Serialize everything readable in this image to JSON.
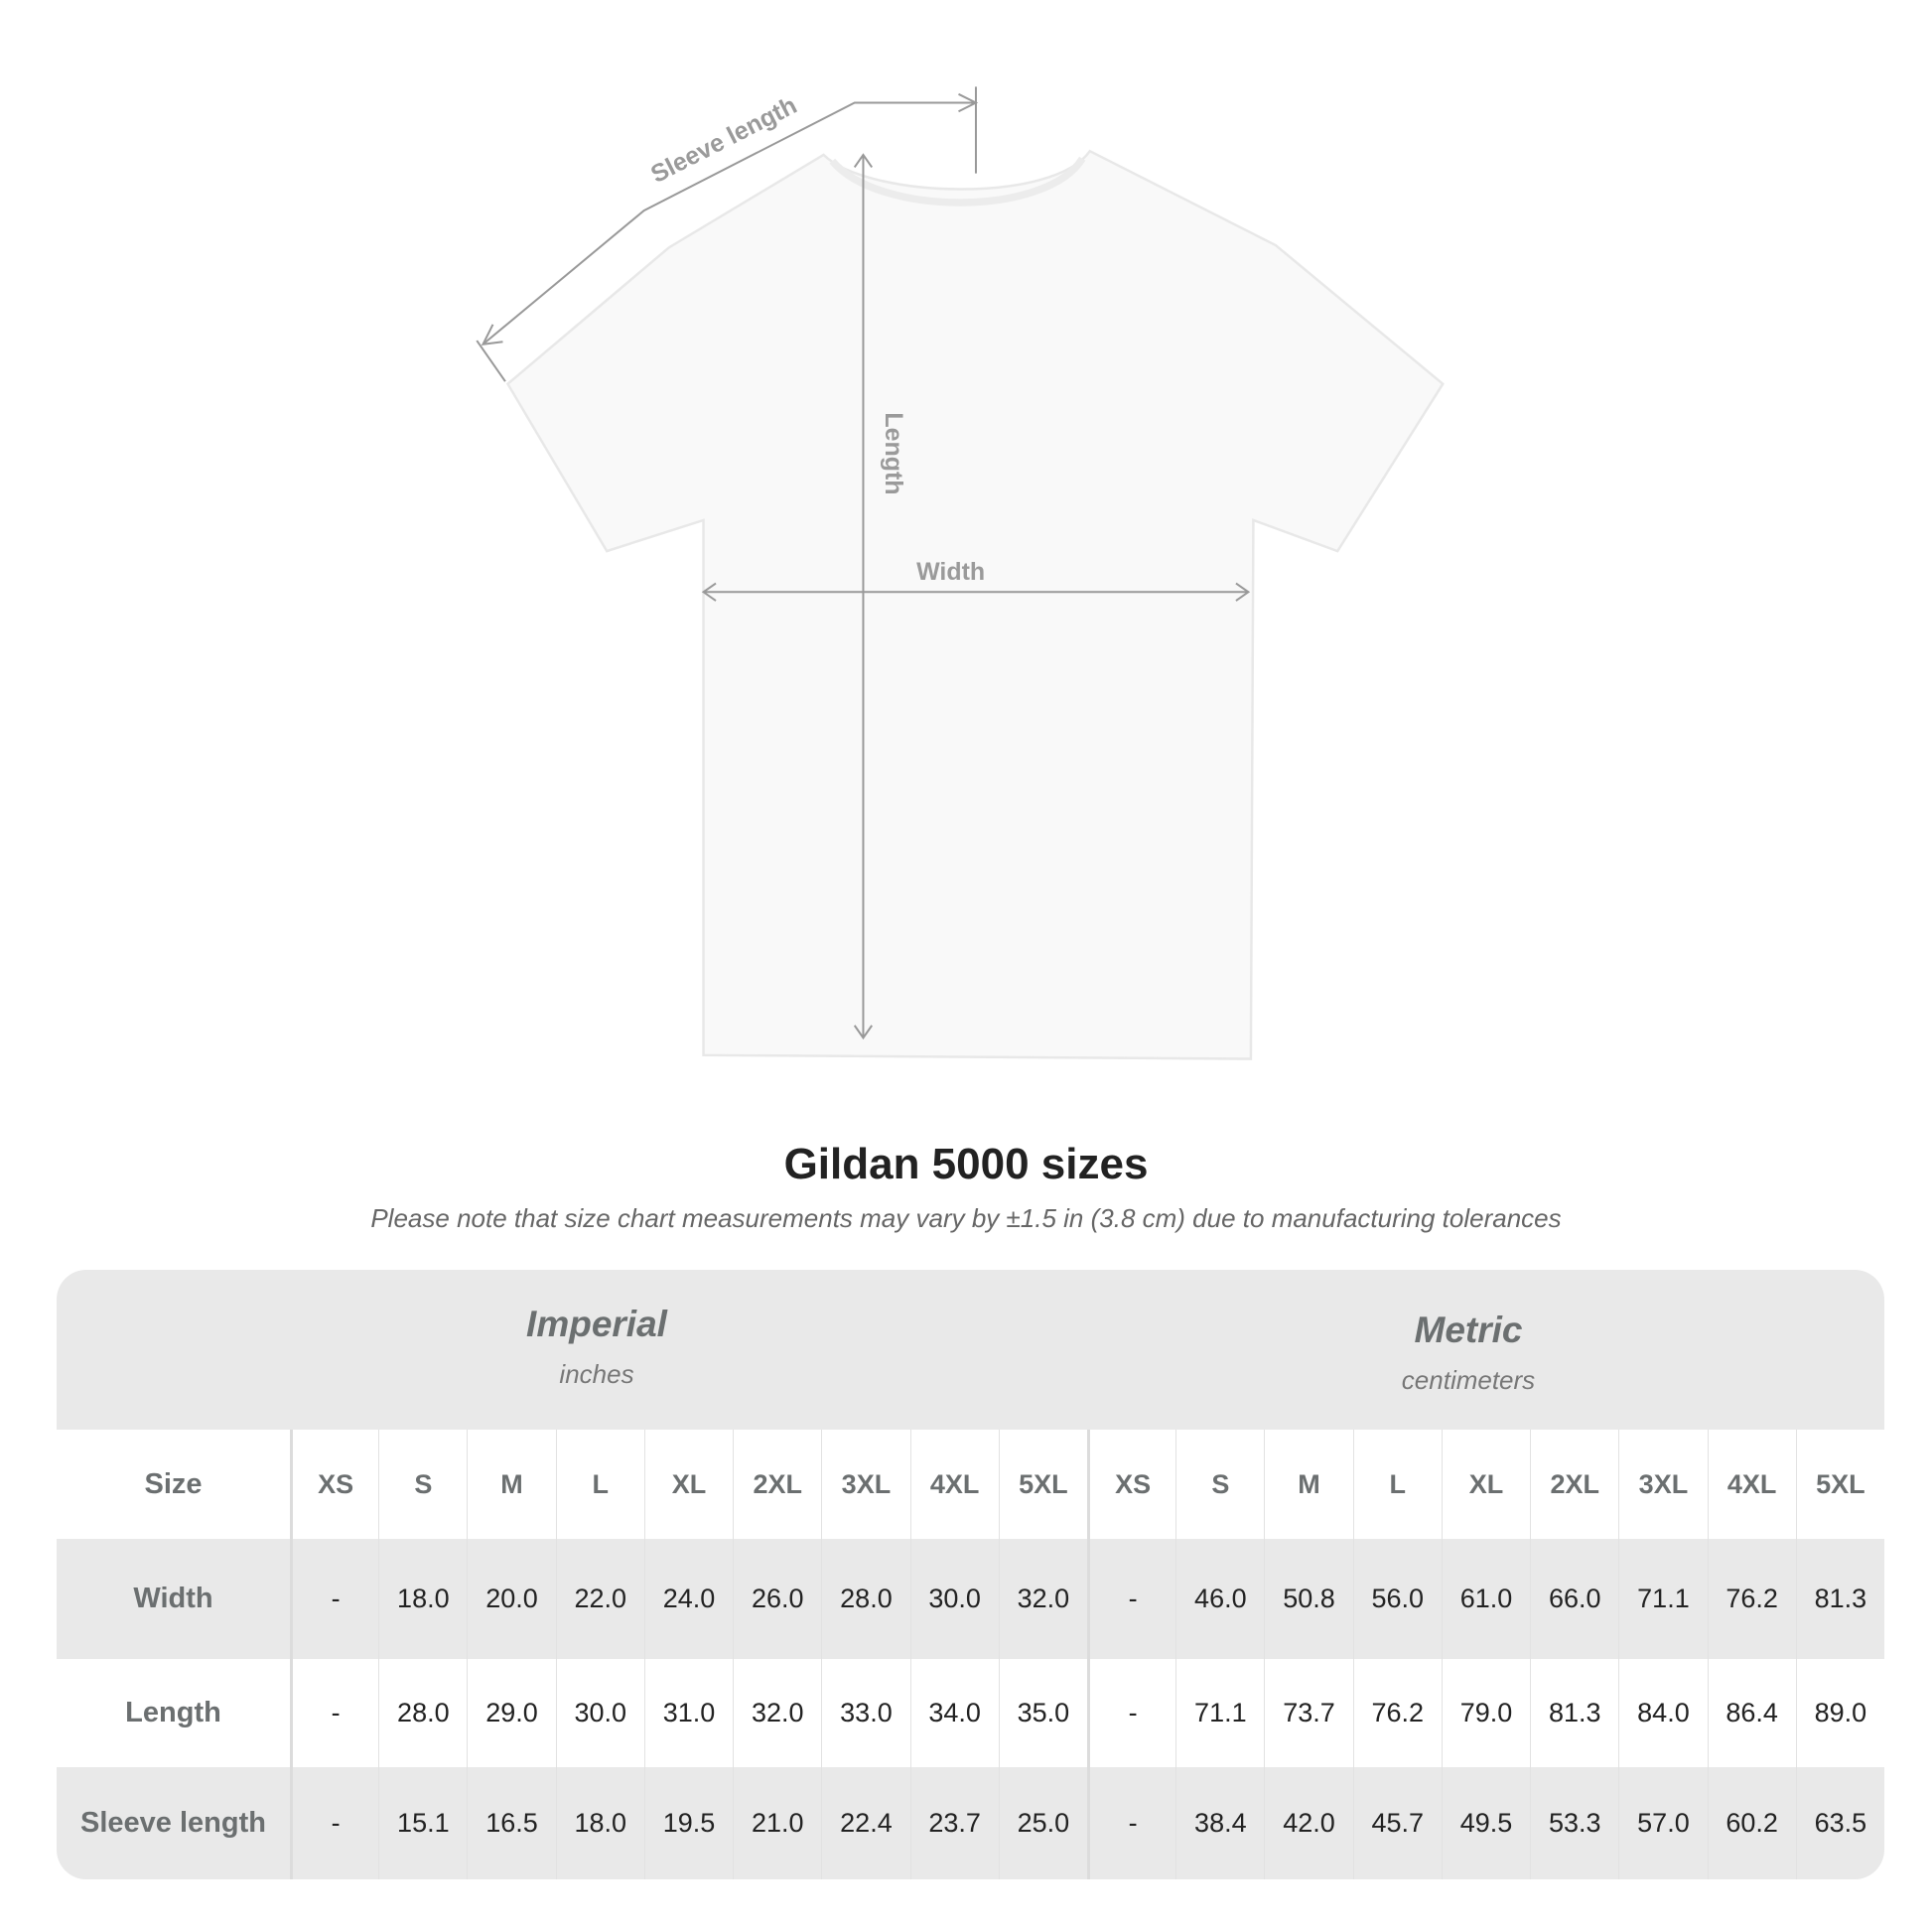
{
  "diagram": {
    "sleeve_label": "Sleeve length",
    "length_label": "Length",
    "width_label": "Width"
  },
  "title": "Gildan 5000 sizes",
  "note": "Please note that size chart measurements may vary by ±1.5 in (3.8 cm) due to manufacturing tolerances",
  "table": {
    "imperial": {
      "name": "Imperial",
      "unit": "inches"
    },
    "metric": {
      "name": "Metric",
      "unit": "centimeters"
    },
    "size_label": "Size",
    "sizes": [
      "XS",
      "S",
      "M",
      "L",
      "XL",
      "2XL",
      "3XL",
      "4XL",
      "5XL"
    ],
    "rows": [
      {
        "label": "Width",
        "imperial": [
          "-",
          "18.0",
          "20.0",
          "22.0",
          "24.0",
          "26.0",
          "28.0",
          "30.0",
          "32.0"
        ],
        "metric": [
          "-",
          "46.0",
          "50.8",
          "56.0",
          "61.0",
          "66.0",
          "71.1",
          "76.2",
          "81.3"
        ]
      },
      {
        "label": "Length",
        "imperial": [
          "-",
          "28.0",
          "29.0",
          "30.0",
          "31.0",
          "32.0",
          "33.0",
          "34.0",
          "35.0"
        ],
        "metric": [
          "-",
          "71.1",
          "73.7",
          "76.2",
          "79.0",
          "81.3",
          "84.0",
          "86.4",
          "89.0"
        ]
      },
      {
        "label": "Sleeve length",
        "imperial": [
          "-",
          "15.1",
          "16.5",
          "18.0",
          "19.5",
          "21.0",
          "22.4",
          "23.7",
          "25.0"
        ],
        "metric": [
          "-",
          "38.4",
          "42.0",
          "45.7",
          "49.5",
          "53.3",
          "57.0",
          "60.2",
          "63.5"
        ]
      }
    ]
  }
}
